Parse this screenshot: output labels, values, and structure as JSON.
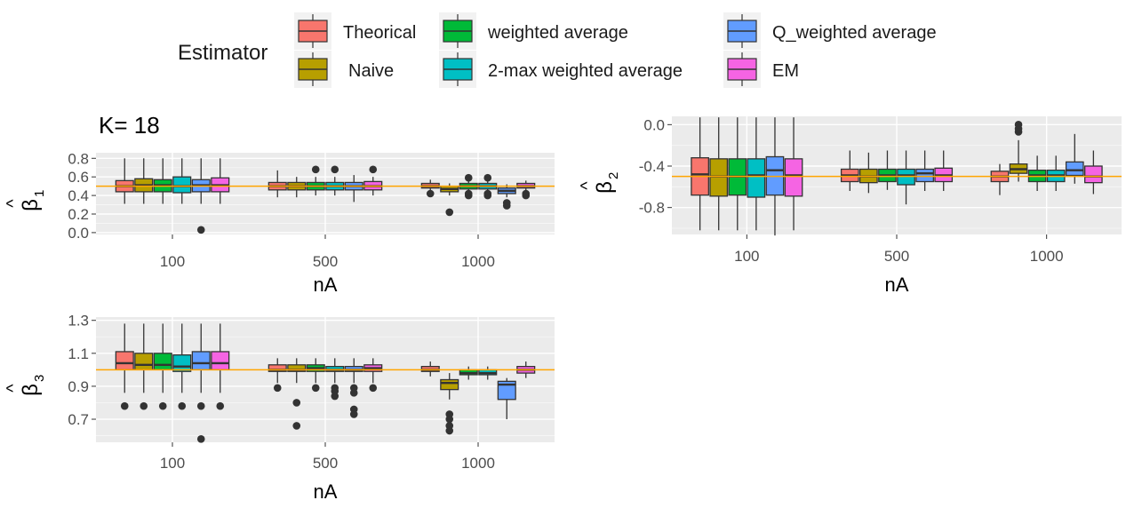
{
  "figure": {
    "title": "K= 18",
    "legend": {
      "title": "Estimator",
      "items": [
        {
          "label": "Theorical",
          "color": "#F8766D"
        },
        {
          "label": "Naive",
          "color": "#B79F00"
        },
        {
          "label": "weighted average",
          "color": "#00BA38"
        },
        {
          "label": "2-max weighted average",
          "color": "#00BFC4"
        },
        {
          "label": "Q_weighted average",
          "color": "#619CFF"
        },
        {
          "label": "EM",
          "color": "#F564E3"
        }
      ]
    },
    "reference_line_color": "#FFA500"
  },
  "chart_data": [
    {
      "type": "box",
      "id": "beta1",
      "ylabel_symbol": "β",
      "ylabel_hat": "^",
      "ylabel_sub": "1",
      "xlabel": "nA",
      "categories": [
        "100",
        "500",
        "1000"
      ],
      "ylim": [
        -0.02,
        0.86
      ],
      "yticks": [
        0.0,
        0.2,
        0.4,
        0.6,
        0.8
      ],
      "ytick_labels": [
        "0.0",
        "0.2",
        "0.4",
        "0.6",
        "0.8"
      ],
      "reference": 0.5,
      "groups": [
        {
          "category": "100",
          "boxes": [
            {
              "q1": 0.44,
              "median": 0.5,
              "q3": 0.56,
              "lo": 0.31,
              "hi": 0.8,
              "outliers": []
            },
            {
              "q1": 0.44,
              "median": 0.51,
              "q3": 0.58,
              "lo": 0.31,
              "hi": 0.8,
              "outliers": []
            },
            {
              "q1": 0.44,
              "median": 0.51,
              "q3": 0.57,
              "lo": 0.31,
              "hi": 0.8,
              "outliers": []
            },
            {
              "q1": 0.43,
              "median": 0.5,
              "q3": 0.6,
              "lo": 0.31,
              "hi": 0.8,
              "outliers": []
            },
            {
              "q1": 0.44,
              "median": 0.51,
              "q3": 0.57,
              "lo": 0.31,
              "hi": 0.8,
              "outliers": [
                0.03
              ]
            },
            {
              "q1": 0.44,
              "median": 0.51,
              "q3": 0.59,
              "lo": 0.31,
              "hi": 0.8,
              "outliers": []
            }
          ]
        },
        {
          "category": "500",
          "boxes": [
            {
              "q1": 0.46,
              "median": 0.5,
              "q3": 0.54,
              "lo": 0.38,
              "hi": 0.67,
              "outliers": []
            },
            {
              "q1": 0.46,
              "median": 0.5,
              "q3": 0.54,
              "lo": 0.38,
              "hi": 0.6,
              "outliers": []
            },
            {
              "q1": 0.46,
              "median": 0.5,
              "q3": 0.54,
              "lo": 0.4,
              "hi": 0.6,
              "outliers": [
                0.68
              ]
            },
            {
              "q1": 0.46,
              "median": 0.5,
              "q3": 0.54,
              "lo": 0.4,
              "hi": 0.6,
              "outliers": [
                0.68
              ]
            },
            {
              "q1": 0.46,
              "median": 0.5,
              "q3": 0.54,
              "lo": 0.33,
              "hi": 0.62,
              "outliers": []
            },
            {
              "q1": 0.46,
              "median": 0.5,
              "q3": 0.55,
              "lo": 0.4,
              "hi": 0.6,
              "outliers": [
                0.68
              ]
            }
          ]
        },
        {
          "category": "1000",
          "boxes": [
            {
              "q1": 0.48,
              "median": 0.5,
              "q3": 0.53,
              "lo": 0.44,
              "hi": 0.57,
              "outliers": [
                0.42
              ]
            },
            {
              "q1": 0.44,
              "median": 0.47,
              "q3": 0.5,
              "lo": 0.4,
              "hi": 0.53,
              "outliers": [
                0.22
              ]
            },
            {
              "q1": 0.47,
              "median": 0.5,
              "q3": 0.53,
              "lo": 0.43,
              "hi": 0.57,
              "outliers": [
                0.4,
                0.42,
                0.59
              ]
            },
            {
              "q1": 0.47,
              "median": 0.5,
              "q3": 0.53,
              "lo": 0.43,
              "hi": 0.57,
              "outliers": [
                0.4,
                0.42,
                0.59
              ]
            },
            {
              "q1": 0.42,
              "median": 0.45,
              "q3": 0.48,
              "lo": 0.38,
              "hi": 0.52,
              "outliers": [
                0.29,
                0.32
              ]
            },
            {
              "q1": 0.48,
              "median": 0.5,
              "q3": 0.53,
              "lo": 0.44,
              "hi": 0.56,
              "outliers": [
                0.4,
                0.42
              ]
            }
          ]
        }
      ]
    },
    {
      "type": "box",
      "id": "beta2",
      "ylabel_symbol": "β",
      "ylabel_hat": "^",
      "ylabel_sub": "2",
      "xlabel": "nA",
      "categories": [
        "100",
        "500",
        "1000"
      ],
      "ylim": [
        -1.06,
        0.08
      ],
      "yticks": [
        0.0,
        -0.4,
        -0.8
      ],
      "ytick_labels": [
        "0.0",
        "-0.4",
        "-0.8"
      ],
      "reference": -0.5,
      "groups": [
        {
          "category": "100",
          "boxes": [
            {
              "q1": -0.68,
              "median": -0.48,
              "q3": -0.32,
              "lo": -1.02,
              "hi": 0.07,
              "outliers": []
            },
            {
              "q1": -0.69,
              "median": -0.5,
              "q3": -0.33,
              "lo": -1.02,
              "hi": 0.07,
              "outliers": []
            },
            {
              "q1": -0.68,
              "median": -0.5,
              "q3": -0.33,
              "lo": -1.02,
              "hi": 0.07,
              "outliers": []
            },
            {
              "q1": -0.7,
              "median": -0.49,
              "q3": -0.33,
              "lo": -1.02,
              "hi": 0.07,
              "outliers": []
            },
            {
              "q1": -0.68,
              "median": -0.44,
              "q3": -0.31,
              "lo": -1.07,
              "hi": 0.07,
              "outliers": []
            },
            {
              "q1": -0.69,
              "median": -0.49,
              "q3": -0.33,
              "lo": -1.02,
              "hi": 0.07,
              "outliers": []
            }
          ]
        },
        {
          "category": "500",
          "boxes": [
            {
              "q1": -0.55,
              "median": -0.49,
              "q3": -0.43,
              "lo": -0.64,
              "hi": -0.25,
              "outliers": []
            },
            {
              "q1": -0.56,
              "median": -0.5,
              "q3": -0.43,
              "lo": -0.66,
              "hi": -0.27,
              "outliers": []
            },
            {
              "q1": -0.55,
              "median": -0.49,
              "q3": -0.43,
              "lo": -0.63,
              "hi": -0.25,
              "outliers": []
            },
            {
              "q1": -0.58,
              "median": -0.49,
              "q3": -0.43,
              "lo": -0.77,
              "hi": -0.25,
              "outliers": []
            },
            {
              "q1": -0.55,
              "median": -0.47,
              "q3": -0.43,
              "lo": -0.64,
              "hi": -0.25,
              "outliers": []
            },
            {
              "q1": -0.55,
              "median": -0.49,
              "q3": -0.42,
              "lo": -0.64,
              "hi": -0.25,
              "outliers": []
            }
          ]
        },
        {
          "category": "1000",
          "boxes": [
            {
              "q1": -0.55,
              "median": -0.5,
              "q3": -0.45,
              "lo": -0.68,
              "hi": -0.38,
              "outliers": []
            },
            {
              "q1": -0.47,
              "median": -0.43,
              "q3": -0.38,
              "lo": -0.55,
              "hi": -0.15,
              "outliers": [
                -0.07,
                -0.04,
                0.0
              ]
            },
            {
              "q1": -0.55,
              "median": -0.49,
              "q3": -0.44,
              "lo": -0.64,
              "hi": -0.3,
              "outliers": []
            },
            {
              "q1": -0.55,
              "median": -0.49,
              "q3": -0.44,
              "lo": -0.64,
              "hi": -0.3,
              "outliers": []
            },
            {
              "q1": -0.49,
              "median": -0.44,
              "q3": -0.36,
              "lo": -0.57,
              "hi": -0.09,
              "outliers": []
            },
            {
              "q1": -0.56,
              "median": -0.5,
              "q3": -0.4,
              "lo": -0.67,
              "hi": -0.25,
              "outliers": []
            }
          ]
        }
      ]
    },
    {
      "type": "box",
      "id": "beta3",
      "ylabel_symbol": "β",
      "ylabel_hat": "^",
      "ylabel_sub": "3",
      "xlabel": "nA",
      "categories": [
        "100",
        "500",
        "1000"
      ],
      "ylim": [
        0.56,
        1.32
      ],
      "yticks": [
        0.7,
        0.9,
        1.1,
        1.3
      ],
      "ytick_labels": [
        "0.7",
        "0.9",
        "1.1",
        "1.3"
      ],
      "reference": 1.0,
      "groups": [
        {
          "category": "100",
          "boxes": [
            {
              "q1": 1.0,
              "median": 1.04,
              "q3": 1.11,
              "lo": 0.86,
              "hi": 1.28,
              "outliers": [
                0.78
              ]
            },
            {
              "q1": 1.0,
              "median": 1.03,
              "q3": 1.1,
              "lo": 0.86,
              "hi": 1.28,
              "outliers": [
                0.78
              ]
            },
            {
              "q1": 1.0,
              "median": 1.03,
              "q3": 1.1,
              "lo": 0.86,
              "hi": 1.28,
              "outliers": [
                0.78
              ]
            },
            {
              "q1": 0.99,
              "median": 1.02,
              "q3": 1.09,
              "lo": 0.86,
              "hi": 1.28,
              "outliers": [
                0.78
              ]
            },
            {
              "q1": 1.0,
              "median": 1.04,
              "q3": 1.11,
              "lo": 0.86,
              "hi": 1.28,
              "outliers": [
                0.78,
                0.58
              ]
            },
            {
              "q1": 1.0,
              "median": 1.04,
              "q3": 1.11,
              "lo": 0.86,
              "hi": 1.28,
              "outliers": [
                0.78
              ]
            }
          ]
        },
        {
          "category": "500",
          "boxes": [
            {
              "q1": 0.99,
              "median": 1.0,
              "q3": 1.03,
              "lo": 0.92,
              "hi": 1.07,
              "outliers": [
                0.89
              ]
            },
            {
              "q1": 0.99,
              "median": 1.0,
              "q3": 1.03,
              "lo": 0.92,
              "hi": 1.07,
              "outliers": [
                0.8,
                0.66
              ]
            },
            {
              "q1": 0.99,
              "median": 1.01,
              "q3": 1.03,
              "lo": 0.92,
              "hi": 1.07,
              "outliers": [
                0.89
              ]
            },
            {
              "q1": 0.99,
              "median": 1.0,
              "q3": 1.02,
              "lo": 0.92,
              "hi": 1.07,
              "outliers": [
                0.89,
                0.84,
                0.87
              ]
            },
            {
              "q1": 0.99,
              "median": 1.0,
              "q3": 1.02,
              "lo": 0.92,
              "hi": 1.07,
              "outliers": [
                0.89,
                0.76,
                0.73,
                0.86
              ]
            },
            {
              "q1": 0.99,
              "median": 1.01,
              "q3": 1.03,
              "lo": 0.92,
              "hi": 1.07,
              "outliers": [
                0.89
              ]
            }
          ]
        },
        {
          "category": "1000",
          "boxes": [
            {
              "q1": 0.99,
              "median": 1.0,
              "q3": 1.02,
              "lo": 0.96,
              "hi": 1.05,
              "outliers": []
            },
            {
              "q1": 0.88,
              "median": 0.92,
              "q3": 0.94,
              "lo": 0.82,
              "hi": 0.98,
              "outliers": [
                0.73,
                0.7,
                0.66,
                0.63
              ]
            },
            {
              "q1": 0.97,
              "median": 0.98,
              "q3": 1.0,
              "lo": 0.94,
              "hi": 1.02,
              "outliers": []
            },
            {
              "q1": 0.97,
              "median": 0.98,
              "q3": 1.0,
              "lo": 0.94,
              "hi": 1.02,
              "outliers": []
            },
            {
              "q1": 0.82,
              "median": 0.91,
              "q3": 0.93,
              "lo": 0.7,
              "hi": 0.95,
              "outliers": []
            },
            {
              "q1": 0.98,
              "median": 1.0,
              "q3": 1.02,
              "lo": 0.95,
              "hi": 1.05,
              "outliers": []
            }
          ]
        }
      ]
    }
  ]
}
